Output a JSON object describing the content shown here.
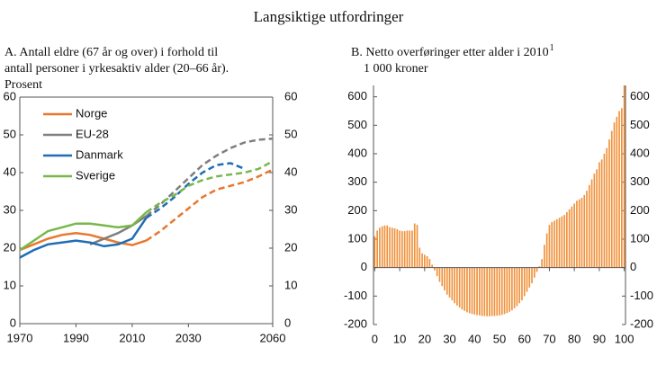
{
  "title": "Langsiktige utfordringer",
  "chart_data": [
    {
      "type": "line",
      "title": [
        "A. Antall eldre (67 år og over) i forhold til",
        "antall personer i yrkesaktiv alder (20–66 år).",
        "Prosent"
      ],
      "x": [
        1970,
        1975,
        1980,
        1985,
        1990,
        1995,
        2000,
        2005,
        2010,
        2015,
        2020,
        2025,
        2030,
        2035,
        2040,
        2045,
        2050,
        2055,
        2060
      ],
      "series": [
        {
          "name": "Norge",
          "color": "#e8772e",
          "values": [
            19.5,
            21,
            22.5,
            23.5,
            24,
            23.5,
            22.5,
            21.5,
            20.8,
            22,
            24.5,
            27.5,
            30.5,
            33.5,
            35.5,
            36.5,
            37.5,
            39,
            40.8
          ]
        },
        {
          "name": "EU-28",
          "color": "#7f7f7f",
          "values": [
            null,
            null,
            null,
            null,
            null,
            21,
            22.5,
            24,
            26,
            28.5,
            31.5,
            35,
            38.5,
            42,
            44.5,
            46.5,
            48,
            48.7,
            49
          ]
        },
        {
          "name": "Danmark",
          "color": "#1f6db5",
          "values": [
            17.5,
            19.5,
            21,
            21.5,
            22,
            21.5,
            20.5,
            21,
            22.5,
            28,
            30.5,
            33.5,
            37,
            40,
            42,
            42.5,
            41,
            null,
            null
          ]
        },
        {
          "name": "Sverige",
          "color": "#78b84a",
          "values": [
            19.5,
            22,
            24.5,
            25.5,
            26.5,
            26.5,
            26,
            25.5,
            26,
            29.5,
            32,
            34,
            36.5,
            38,
            39,
            39.5,
            40,
            41,
            43
          ]
        }
      ],
      "dashed_from": 2015,
      "xlim": [
        1970,
        2060
      ],
      "xticks": [
        1970,
        1990,
        2010,
        2030,
        2060
      ],
      "ylim": [
        0,
        60
      ],
      "yticks": [
        0,
        10,
        20,
        30,
        40,
        50,
        60
      ],
      "right_axis_labels": true,
      "legend": "upper-left"
    },
    {
      "type": "bar",
      "title": "B. Netto overføringer etter alder i 2010",
      "title_footnote": "1",
      "subtitle": "1 000 kroner",
      "color": "#f0913a",
      "x": [
        0,
        1,
        2,
        3,
        4,
        5,
        6,
        7,
        8,
        9,
        10,
        11,
        12,
        13,
        14,
        15,
        16,
        17,
        18,
        19,
        20,
        21,
        22,
        23,
        24,
        25,
        26,
        27,
        28,
        29,
        30,
        31,
        32,
        33,
        34,
        35,
        36,
        37,
        38,
        39,
        40,
        41,
        42,
        43,
        44,
        45,
        46,
        47,
        48,
        49,
        50,
        51,
        52,
        53,
        54,
        55,
        56,
        57,
        58,
        59,
        60,
        61,
        62,
        63,
        64,
        65,
        66,
        67,
        68,
        69,
        70,
        71,
        72,
        73,
        74,
        75,
        76,
        77,
        78,
        79,
        80,
        81,
        82,
        83,
        84,
        85,
        86,
        87,
        88,
        89,
        90,
        91,
        92,
        93,
        94,
        95,
        96,
        97,
        98,
        99,
        100
      ],
      "values": [
        110,
        130,
        140,
        145,
        148,
        148,
        142,
        140,
        138,
        135,
        130,
        128,
        128,
        130,
        130,
        130,
        155,
        150,
        70,
        50,
        45,
        40,
        30,
        10,
        -10,
        -30,
        -50,
        -65,
        -80,
        -95,
        -105,
        -115,
        -125,
        -133,
        -140,
        -147,
        -152,
        -157,
        -160,
        -163,
        -165,
        -167,
        -168,
        -170,
        -170,
        -171,
        -171,
        -170,
        -170,
        -169,
        -168,
        -166,
        -163,
        -160,
        -155,
        -150,
        -143,
        -135,
        -125,
        -115,
        -100,
        -85,
        -70,
        -55,
        -35,
        -15,
        5,
        30,
        80,
        120,
        150,
        160,
        165,
        170,
        175,
        180,
        185,
        195,
        205,
        215,
        225,
        235,
        240,
        245,
        255,
        270,
        290,
        310,
        330,
        345,
        370,
        380,
        400,
        420,
        450,
        480,
        510,
        530,
        550,
        560,
        640
      ],
      "xlim": [
        -0.5,
        100.5
      ],
      "xticks": [
        0,
        10,
        20,
        30,
        40,
        50,
        60,
        70,
        80,
        90,
        100
      ],
      "ylim": [
        -200,
        640
      ],
      "yticks": [
        -200,
        -100,
        0,
        100,
        200,
        300,
        400,
        500,
        600
      ],
      "right_axis_labels": true
    }
  ]
}
